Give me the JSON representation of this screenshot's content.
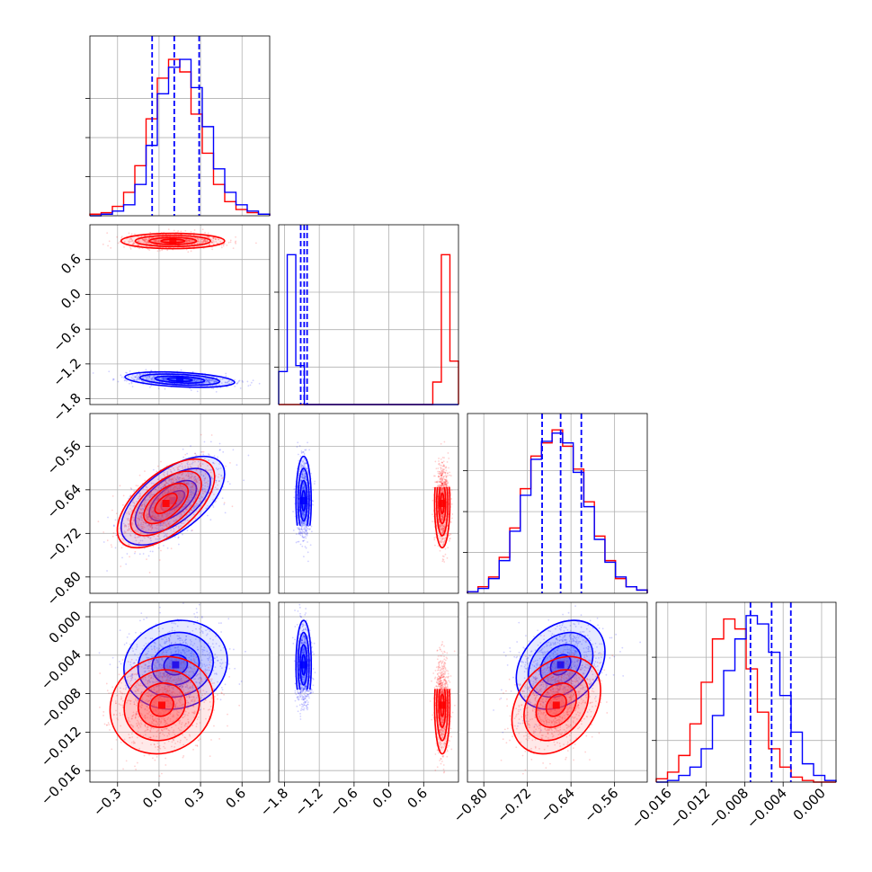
{
  "chart_data": {
    "type": "corner",
    "title": "",
    "grid": true,
    "series": [
      {
        "color": "#ff0000",
        "kind": "samples"
      },
      {
        "color": "#0000ff",
        "kind": "samples"
      }
    ],
    "params": [
      {
        "range": [
          -0.5,
          0.8
        ],
        "ticks": [
          -0.3,
          0.0,
          0.3,
          0.6
        ],
        "tick_labels": [
          "−0.3",
          "0.0",
          "0.3",
          "0.6"
        ]
      },
      {
        "range": [
          -1.9,
          1.2
        ],
        "ticks": [
          -1.8,
          -1.2,
          -0.6,
          0.0,
          0.6
        ],
        "tick_labels": [
          "−1.8",
          "−1.2",
          "−0.6",
          "0.0",
          "0.6"
        ]
      },
      {
        "range": [
          -0.83,
          -0.5
        ],
        "ticks": [
          -0.8,
          -0.72,
          -0.64,
          -0.56
        ],
        "tick_labels": [
          "−0.80",
          "−0.72",
          "−0.64",
          "−0.56"
        ]
      },
      {
        "range": [
          -0.0172,
          0.0015
        ],
        "ticks": [
          -0.016,
          -0.012,
          -0.008,
          -0.004,
          0.0
        ],
        "tick_labels": [
          "−0.016",
          "−0.012",
          "−0.008",
          "−0.004",
          "0.000"
        ]
      }
    ],
    "quantiles": [
      [
        -0.05,
        0.11,
        0.29
      ],
      [
        -1.52,
        -1.46,
        -1.41
      ],
      [
        -0.693,
        -0.659,
        -0.621
      ],
      [
        -0.0074,
        -0.0052,
        -0.0032
      ]
    ],
    "histograms": [
      {
        "red": [
          1,
          2,
          6,
          15,
          32,
          62,
          88,
          100,
          92,
          65,
          40,
          20,
          9,
          4,
          2,
          1
        ],
        "blue": [
          0,
          1,
          3,
          7,
          20,
          45,
          78,
          95,
          100,
          82,
          57,
          30,
          15,
          7,
          3,
          1
        ]
      },
      {
        "red": [
          0,
          0,
          0,
          0,
          0,
          0,
          0,
          0,
          0,
          0,
          0,
          0,
          0,
          0,
          0,
          0,
          0,
          0,
          15,
          100,
          29
        ],
        "blue": [
          22,
          100,
          26,
          0,
          0,
          0,
          0,
          0,
          0,
          0,
          0,
          0,
          0,
          0,
          0,
          0,
          0,
          0,
          0,
          0,
          0
        ]
      },
      {
        "red": [
          1,
          4,
          10,
          22,
          40,
          64,
          84,
          92,
          100,
          90,
          76,
          56,
          35,
          20,
          9,
          4,
          2
        ],
        "blue": [
          1,
          3,
          9,
          20,
          38,
          60,
          82,
          93,
          98,
          92,
          74,
          53,
          33,
          19,
          10,
          4,
          2
        ]
      },
      {
        "red": [
          2,
          6,
          16,
          35,
          60,
          86,
          98,
          92,
          68,
          42,
          20,
          9,
          3,
          1,
          0,
          0
        ],
        "blue": [
          0,
          1,
          4,
          9,
          20,
          40,
          67,
          86,
          100,
          95,
          78,
          52,
          30,
          11,
          4,
          1
        ]
      }
    ],
    "histogram_ymax": [
      115,
      120,
      110,
      108
    ],
    "pairs": [
      {
        "row": 1,
        "col": 0,
        "red": {
          "mean": [
            0.1,
            0.92
          ],
          "sd": [
            0.17,
            0.06
          ],
          "rho": 0.0
        },
        "blue": {
          "mean": [
            0.15,
            -1.47
          ],
          "sd": [
            0.18,
            0.06
          ],
          "rho": -0.35
        }
      },
      {
        "row": 2,
        "col": 0,
        "red": {
          "mean": [
            0.05,
            -0.665
          ],
          "sd": [
            0.16,
            0.037
          ],
          "rho": 0.6
        },
        "blue": {
          "mean": [
            0.1,
            -0.66
          ],
          "sd": [
            0.17,
            0.037
          ],
          "rho": 0.6
        }
      },
      {
        "row": 2,
        "col": 1,
        "red": {
          "mean": [
            0.92,
            -0.665
          ],
          "sd": [
            0.06,
            0.037
          ],
          "rho": 0.0
        },
        "blue": {
          "mean": [
            -1.47,
            -0.66
          ],
          "sd": [
            0.06,
            0.037
          ],
          "rho": 0.0
        }
      },
      {
        "row": 3,
        "col": 0,
        "red": {
          "mean": [
            0.02,
            -0.0092
          ],
          "sd": [
            0.17,
            0.0023
          ],
          "rho": 0.1
        },
        "blue": {
          "mean": [
            0.12,
            -0.005
          ],
          "sd": [
            0.17,
            0.0021
          ],
          "rho": 0.1
        }
      },
      {
        "row": 3,
        "col": 1,
        "red": {
          "mean": [
            0.92,
            -0.0092
          ],
          "sd": [
            0.06,
            0.0023
          ],
          "rho": 0.0
        },
        "blue": {
          "mean": [
            -1.47,
            -0.005
          ],
          "sd": [
            0.06,
            0.0021
          ],
          "rho": 0.0
        }
      },
      {
        "row": 3,
        "col": 2,
        "red": {
          "mean": [
            -0.667,
            -0.0092
          ],
          "sd": [
            0.037,
            0.0023
          ],
          "rho": 0.3
        },
        "blue": {
          "mean": [
            -0.659,
            -0.005
          ],
          "sd": [
            0.037,
            0.0021
          ],
          "rho": 0.3
        }
      }
    ]
  }
}
